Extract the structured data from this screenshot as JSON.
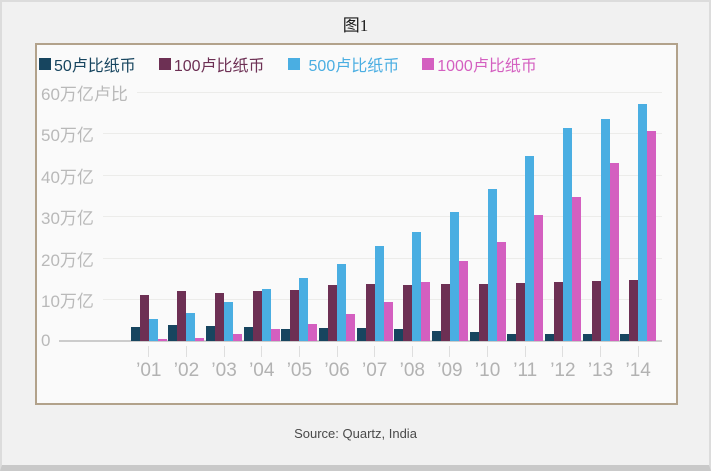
{
  "page": {
    "title": "图1",
    "source": "Source: Quartz, India"
  },
  "chart_data": {
    "type": "bar",
    "title": "图1",
    "categories": [
      "’01",
      "’02",
      "’03",
      "’04",
      "’05",
      "’06",
      "’07",
      "’08",
      "’09",
      "’10",
      "’11",
      "’12",
      "’13",
      "’14"
    ],
    "series": [
      {
        "name": "50卢比纸币",
        "color": "#17455f",
        "values": [
          3.5,
          3.8,
          3.7,
          3.5,
          2.9,
          3.1,
          3.1,
          2.8,
          2.4,
          2.3,
          1.8,
          1.7,
          1.7,
          1.8
        ]
      },
      {
        "name": "100卢比纸币",
        "color": "#6d3054",
        "values": [
          11.0,
          12.0,
          11.6,
          12.1,
          12.4,
          13.5,
          13.7,
          13.6,
          13.7,
          13.7,
          14.0,
          14.2,
          14.5,
          14.8
        ]
      },
      {
        "name": "500卢比纸币",
        "color": "#4aaee2",
        "values": [
          5.4,
          6.8,
          9.4,
          12.6,
          15.3,
          18.6,
          22.9,
          26.3,
          31.0,
          36.6,
          44.6,
          51.3,
          53.5,
          57.0
        ]
      },
      {
        "name": "1000卢比纸币",
        "color": "#d45fc0",
        "values": [
          0.6,
          0.8,
          1.8,
          2.9,
          4.2,
          6.5,
          9.5,
          14.2,
          19.4,
          23.9,
          30.4,
          34.8,
          43.0,
          50.7
        ]
      }
    ],
    "y_ticks": [
      {
        "label": "60万亿卢比",
        "value": 60
      },
      {
        "label": "50万亿",
        "value": 50
      },
      {
        "label": "40万亿",
        "value": 40
      },
      {
        "label": "30万亿",
        "value": 30
      },
      {
        "label": "20万亿",
        "value": 20
      },
      {
        "label": "10万亿",
        "value": 10
      },
      {
        "label": "0",
        "value": 0
      }
    ],
    "ylim": [
      0,
      60
    ],
    "ylabel": "万亿卢比",
    "xlabel": "",
    "grid": "horizontal",
    "legend_position": "top-left",
    "source": "Source: Quartz, India"
  }
}
